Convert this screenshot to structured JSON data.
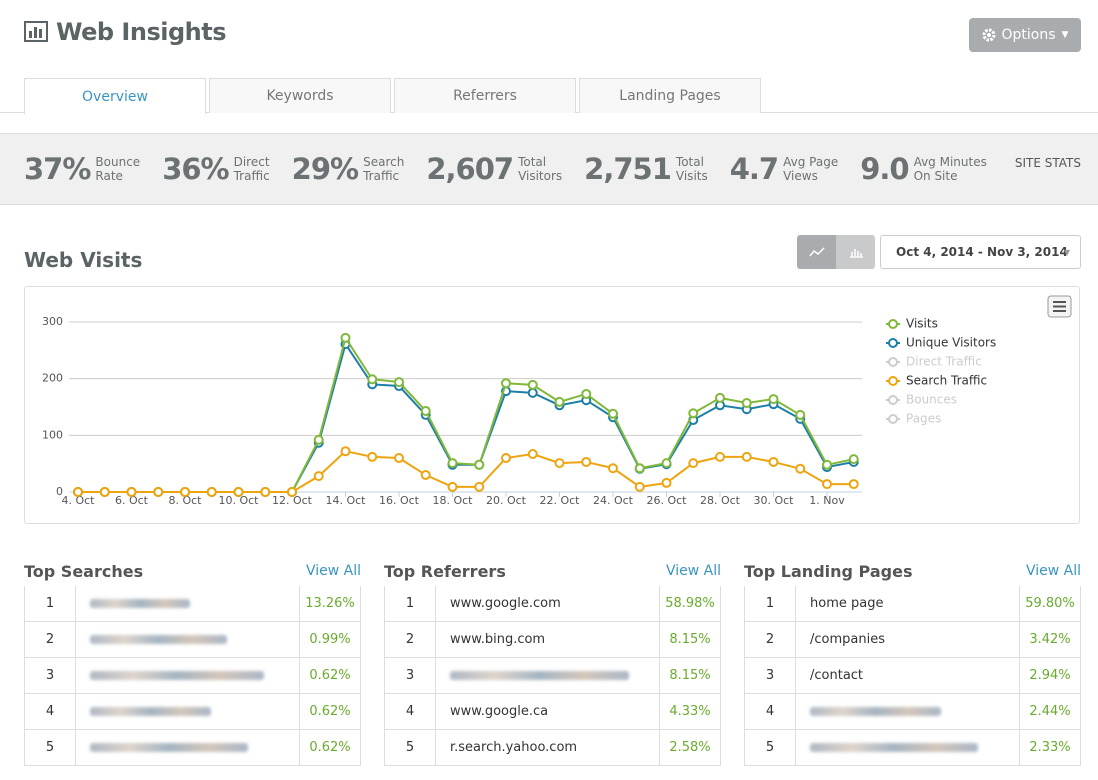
{
  "header": {
    "title": "Web Insights",
    "options": "Options"
  },
  "tabs": [
    "Overview",
    "Keywords",
    "Referrers",
    "Landing Pages"
  ],
  "active_tab": 0,
  "stats": [
    {
      "value": "37%",
      "label": [
        "Bounce",
        "Rate"
      ]
    },
    {
      "value": "36%",
      "label": [
        "Direct",
        "Traffic"
      ]
    },
    {
      "value": "29%",
      "label": [
        "Search",
        "Traffic"
      ]
    },
    {
      "value": "2,607",
      "label": [
        "Total",
        "Visitors"
      ]
    },
    {
      "value": "2,751",
      "label": [
        "Total",
        "Visits"
      ]
    },
    {
      "value": "4.7",
      "label": [
        "Avg Page",
        "Views"
      ]
    },
    {
      "value": "9.0",
      "label": [
        "Avg Minutes",
        "On Site"
      ]
    }
  ],
  "stats_title": "SITE STATS",
  "section_title": "Web Visits",
  "date_range": "Oct 4, 2014 - Nov 3, 2014",
  "chart_data": {
    "type": "line",
    "categories": [
      "4. Oct",
      null,
      "6. Oct",
      null,
      "8. Oct",
      null,
      "10. Oct",
      null,
      "12. Oct",
      null,
      "14. Oct",
      null,
      "16. Oct",
      null,
      "18. Oct",
      null,
      "20. Oct",
      null,
      "22. Oct",
      null,
      "24. Oct",
      null,
      "26. Oct",
      null,
      "28. Oct",
      null,
      "30. Oct",
      null,
      "1. Nov",
      null
    ],
    "ylim": [
      0,
      300
    ],
    "yticks": [
      0,
      100,
      200,
      300
    ],
    "grid": true,
    "series": [
      {
        "name": "Visits",
        "color": "#80b83a",
        "values": [
          0,
          0,
          0,
          0,
          0,
          0,
          0,
          0,
          0,
          92,
          272,
          199,
          194,
          143,
          51,
          48,
          192,
          189,
          159,
          173,
          138,
          42,
          51,
          139,
          166,
          157,
          164,
          136,
          48,
          58
        ]
      },
      {
        "name": "Unique Visitors",
        "color": "#1d7fa6",
        "values": [
          0,
          0,
          0,
          0,
          0,
          0,
          0,
          0,
          0,
          87,
          261,
          190,
          187,
          136,
          48,
          48,
          178,
          175,
          153,
          162,
          132,
          41,
          49,
          127,
          153,
          146,
          155,
          129,
          44,
          53
        ]
      },
      {
        "name": "Direct Traffic",
        "color": "#cccccc",
        "hidden": true
      },
      {
        "name": "Search Traffic",
        "color": "#eea40f",
        "values": [
          0,
          0,
          0,
          0,
          0,
          0,
          0,
          0,
          0,
          28,
          72,
          62,
          60,
          30,
          9,
          9,
          60,
          67,
          51,
          53,
          42,
          9,
          16,
          51,
          62,
          62,
          53,
          41,
          14,
          14
        ]
      },
      {
        "name": "Bounces",
        "color": "#cccccc",
        "hidden": true
      },
      {
        "name": "Pages",
        "color": "#cccccc",
        "hidden": true
      }
    ]
  },
  "tables": [
    {
      "title": "Top Searches",
      "link": "View All",
      "rows": [
        {
          "rank": 1,
          "pct": "13.26%"
        },
        {
          "rank": 2,
          "pct": "0.99%"
        },
        {
          "rank": 3,
          "pct": "0.62%"
        },
        {
          "rank": 4,
          "pct": "0.62%"
        },
        {
          "rank": 5,
          "pct": "0.62%"
        }
      ]
    },
    {
      "title": "Top Referrers",
      "link": "View All",
      "rows": [
        {
          "rank": 1,
          "label": "www.google.com",
          "pct": "58.98%"
        },
        {
          "rank": 2,
          "label": "www.bing.com",
          "pct": "8.15%"
        },
        {
          "rank": 3,
          "pct": "8.15%"
        },
        {
          "rank": 4,
          "label": "www.google.ca",
          "pct": "4.33%"
        },
        {
          "rank": 5,
          "label": "r.search.yahoo.com",
          "pct": "2.58%"
        }
      ]
    },
    {
      "title": "Top Landing Pages",
      "link": "View All",
      "rows": [
        {
          "rank": 1,
          "label": "home page",
          "pct": "59.80%"
        },
        {
          "rank": 2,
          "label": "/companies",
          "pct": "3.42%"
        },
        {
          "rank": 3,
          "label": "/contact",
          "pct": "2.94%"
        },
        {
          "rank": 4,
          "pct": "2.44%"
        },
        {
          "rank": 5,
          "pct": "2.33%"
        }
      ]
    }
  ]
}
